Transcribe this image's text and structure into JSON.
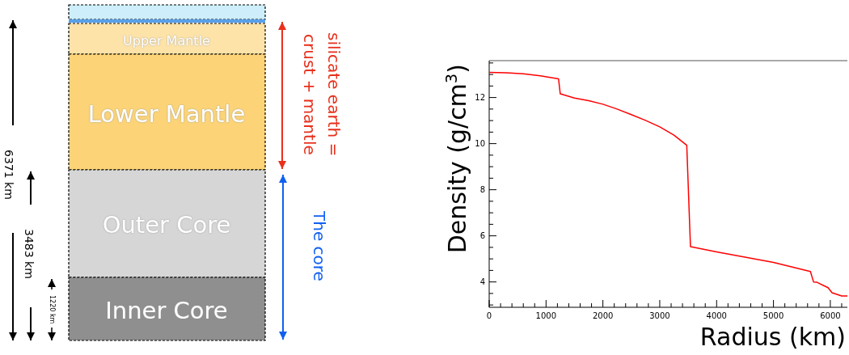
{
  "chart_data": [
    {
      "type": "other",
      "annotations": [
        "Upper Mantle",
        "Lower Mantle",
        "Outer Core",
        "Inner Core",
        "silicate earth =",
        "crust + mantle",
        "The core",
        "6371 km",
        "3483 km",
        "1220 km"
      ]
    },
    {
      "type": "line",
      "xlabel": "Radius (km)",
      "ylabel": "Density (g/cm$^{3}$)",
      "xlim": [
        0,
        6300
      ],
      "ylim": [
        2.9,
        13.6
      ],
      "xticks": [
        0,
        {
          "value": 200,
          "label": null
        },
        {
          "value": 400,
          "label": null
        },
        {
          "value": 600,
          "label": null
        },
        {
          "value": 800,
          "label": null
        },
        1000,
        {
          "value": 1200,
          "label": null
        },
        {
          "value": 1400,
          "label": null
        },
        {
          "value": 1600,
          "label": null
        },
        {
          "value": 1800,
          "label": null
        },
        2000,
        {
          "value": 2200,
          "label": null
        },
        {
          "value": 2400,
          "label": null
        },
        {
          "value": 2600,
          "label": null
        },
        {
          "value": 2800,
          "label": null
        },
        3000,
        {
          "value": 3200,
          "label": null
        },
        {
          "value": 3400,
          "label": null
        },
        {
          "value": 3600,
          "label": null
        },
        {
          "value": 3800,
          "label": null
        },
        4000,
        {
          "value": 4200,
          "label": null
        },
        {
          "value": 4400,
          "label": null
        },
        {
          "value": 4600,
          "label": null
        },
        {
          "value": 4800,
          "label": null
        },
        5000,
        {
          "value": 5200,
          "label": null
        },
        {
          "value": 5400,
          "label": null
        },
        {
          "value": 5600,
          "label": null
        },
        {
          "value": 5800,
          "label": null
        },
        6000,
        {
          "value": 6200,
          "label": null
        }
      ],
      "yticks": [
        {
          "value": 3,
          "label": null
        },
        {
          "value": 3.5,
          "label": null
        },
        4,
        {
          "value": 4.5,
          "label": null
        },
        {
          "value": 5,
          "label": null
        },
        {
          "value": 5.5,
          "label": null
        },
        6,
        {
          "value": 6.5,
          "label": null
        },
        {
          "value": 7,
          "label": null
        },
        {
          "value": 7.5,
          "label": null
        },
        8,
        {
          "value": 8.5,
          "label": null
        },
        {
          "value": 9,
          "label": null
        },
        {
          "value": 9.5,
          "label": null
        },
        10,
        {
          "value": 10.5,
          "label": null
        },
        {
          "value": 11,
          "label": null
        },
        {
          "value": 11.5,
          "label": null
        },
        12,
        {
          "value": 12.5,
          "label": null
        },
        {
          "value": 13,
          "label": null
        },
        {
          "value": 13.5,
          "label": null
        }
      ],
      "marker": "none",
      "line_style": "solid",
      "series": [
        {
          "color": "#ff0000",
          "x": [
            0,
            300,
            600,
            900,
            1220,
            1250,
            1500,
            1750,
            2000,
            2250,
            2500,
            2750,
            3000,
            3250,
            3475,
            3540,
            4000,
            5000,
            5650,
            5705,
            5760,
            5960,
            6030,
            6200,
            6300
          ],
          "values": [
            13.09,
            13.07,
            13.03,
            12.94,
            12.81,
            12.16,
            11.98,
            11.86,
            11.71,
            11.5,
            11.26,
            11.01,
            10.73,
            10.37,
            9.93,
            5.53,
            5.3,
            4.85,
            4.45,
            4.0,
            3.99,
            3.75,
            3.53,
            3.39,
            3.39
          ]
        }
      ]
    }
  ]
}
